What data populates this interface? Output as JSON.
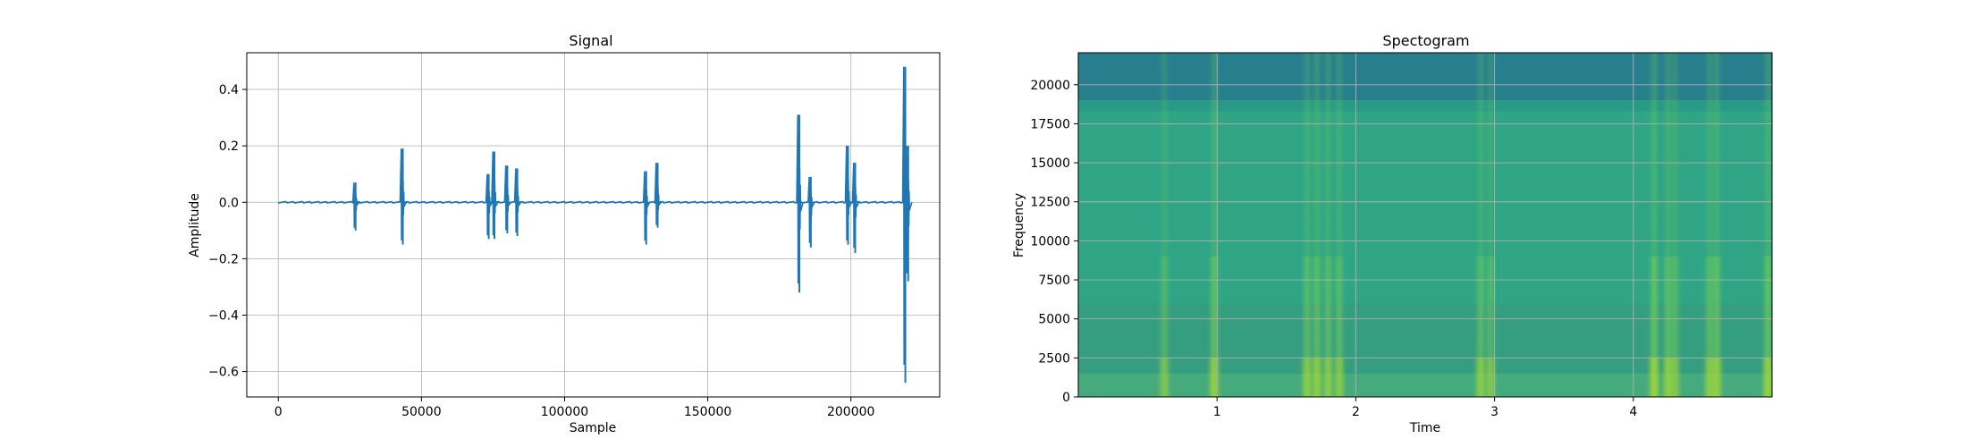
{
  "chart_data": [
    {
      "type": "line",
      "title": "Signal",
      "xlabel": "Sample",
      "ylabel": "Amplitude",
      "xlim": [
        -11000,
        231000
      ],
      "ylim": [
        -0.69,
        0.53
      ],
      "xticks": [
        0,
        50000,
        100000,
        150000,
        200000
      ],
      "xtick_labels": [
        "0",
        "50000",
        "100000",
        "150000",
        "200000"
      ],
      "yticks": [
        -0.6,
        -0.4,
        -0.2,
        0.0,
        0.2,
        0.4
      ],
      "ytick_labels": [
        "−0.6",
        "−0.4",
        "−0.2",
        "0.0",
        "0.2",
        "0.4"
      ],
      "grid": true,
      "line_color": "#1f77b4",
      "baseline": {
        "x": [
          0,
          220000
        ],
        "y": 0.0
      },
      "bursts": [
        {
          "x": 27000,
          "min": -0.1,
          "max": 0.07
        },
        {
          "x": 43500,
          "min": -0.15,
          "max": 0.19
        },
        {
          "x": 73500,
          "min": -0.13,
          "max": 0.1
        },
        {
          "x": 75500,
          "min": -0.13,
          "max": 0.18
        },
        {
          "x": 80000,
          "min": -0.11,
          "max": 0.13
        },
        {
          "x": 83500,
          "min": -0.12,
          "max": 0.12
        },
        {
          "x": 128500,
          "min": -0.15,
          "max": 0.11
        },
        {
          "x": 132500,
          "min": -0.09,
          "max": 0.14
        },
        {
          "x": 182000,
          "min": -0.32,
          "max": 0.31
        },
        {
          "x": 186000,
          "min": -0.16,
          "max": 0.09
        },
        {
          "x": 199000,
          "min": -0.15,
          "max": 0.2
        },
        {
          "x": 201500,
          "min": -0.18,
          "max": 0.14
        },
        {
          "x": 219000,
          "min": -0.64,
          "max": 0.48
        },
        {
          "x": 220000,
          "min": -0.28,
          "max": 0.2
        }
      ]
    },
    {
      "type": "heatmap",
      "title": "Spectogram",
      "xlabel": "Time",
      "ylabel": "Frequency",
      "xlim": [
        0.0,
        5.0
      ],
      "ylim": [
        0,
        22050
      ],
      "xticks": [
        1,
        2,
        3,
        4
      ],
      "xtick_labels": [
        "1",
        "2",
        "3",
        "4"
      ],
      "yticks": [
        0,
        2500,
        5000,
        7500,
        10000,
        12500,
        15000,
        17500,
        20000
      ],
      "ytick_labels": [
        "0",
        "2500",
        "5000",
        "7500",
        "10000",
        "12500",
        "15000",
        "17500",
        "20000"
      ],
      "grid": true,
      "colormap": "viridis",
      "colors": {
        "background": "#2a8a8a",
        "band": "#2fa585",
        "top": "#277f8e",
        "low": "#3b9a7f",
        "event": "#7ad151",
        "event_bright": "#bddf26"
      },
      "events": [
        {
          "t": 0.62,
          "strength": 0.55
        },
        {
          "t": 0.98,
          "strength": 0.8
        },
        {
          "t": 1.65,
          "strength": 0.7
        },
        {
          "t": 1.72,
          "strength": 0.75
        },
        {
          "t": 1.8,
          "strength": 0.7
        },
        {
          "t": 1.88,
          "strength": 0.65
        },
        {
          "t": 2.9,
          "strength": 0.7
        },
        {
          "t": 2.97,
          "strength": 0.6
        },
        {
          "t": 4.15,
          "strength": 0.9
        },
        {
          "t": 4.25,
          "strength": 0.75
        },
        {
          "t": 4.3,
          "strength": 0.6
        },
        {
          "t": 4.55,
          "strength": 0.7
        },
        {
          "t": 4.6,
          "strength": 0.8
        },
        {
          "t": 4.97,
          "strength": 0.85
        }
      ]
    }
  ]
}
